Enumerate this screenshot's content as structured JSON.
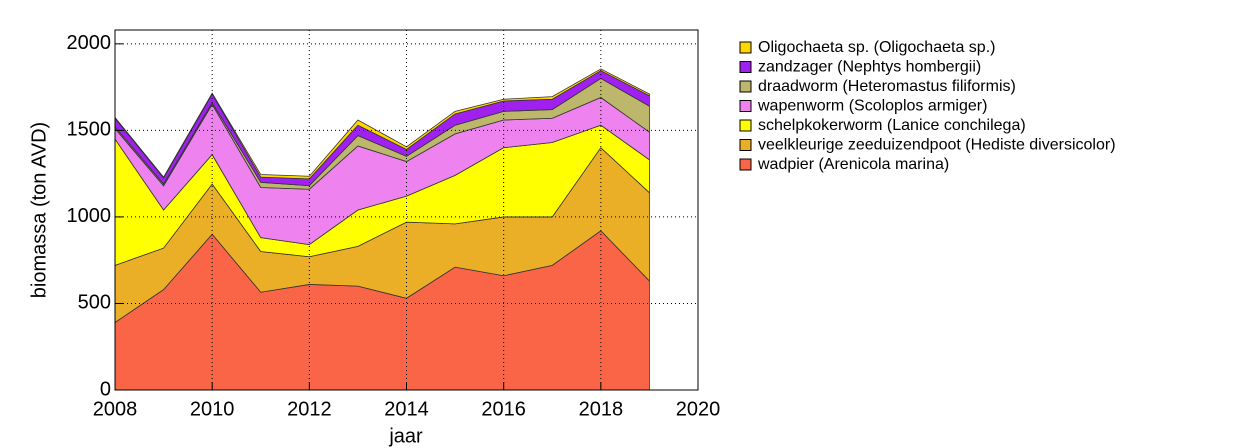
{
  "chart_data": {
    "type": "stacked_area",
    "x_label": "jaar",
    "y_label": "biomassa (ton AVD)",
    "x": [
      2008,
      2009,
      2010,
      2011,
      2012,
      2013,
      2014,
      2015,
      2016,
      2017,
      2018,
      2019
    ],
    "xlim": [
      2008,
      2020
    ],
    "xticks": [
      2008,
      2010,
      2012,
      2014,
      2016,
      2018,
      2020
    ],
    "ylim": [
      0,
      2080
    ],
    "yticks": [
      0,
      500,
      1000,
      1500,
      2000
    ],
    "grid": true,
    "series": [
      {
        "name": "wadpier (Arenicola marina)",
        "color": "#fa6547",
        "values": [
          390,
          580,
          900,
          565,
          610,
          600,
          530,
          710,
          660,
          720,
          920,
          630
        ]
      },
      {
        "name": "veelkleurige zeeduizendpoot (Hediste diversicolor)",
        "color": "#ebae27",
        "values": [
          330,
          240,
          290,
          235,
          160,
          230,
          440,
          250,
          340,
          280,
          480,
          510
        ]
      },
      {
        "name": "schelpkokerworm (Lanice conchilega)",
        "color": "#ffff00",
        "values": [
          730,
          220,
          170,
          80,
          70,
          210,
          150,
          280,
          400,
          430,
          130,
          190
        ]
      },
      {
        "name": "wapenworm (Scoloplos armiger)",
        "color": "#ee82ee",
        "values": [
          60,
          140,
          290,
          290,
          320,
          370,
          200,
          240,
          160,
          140,
          160,
          160
        ]
      },
      {
        "name": "draadworm (Heteromastus filiformis)",
        "color": "#bdb76b",
        "values": [
          10,
          10,
          10,
          30,
          20,
          60,
          30,
          50,
          50,
          50,
          110,
          150
        ]
      },
      {
        "name": "zandzager (Nephtys hombergii)",
        "color": "#a020f0",
        "values": [
          50,
          35,
          50,
          30,
          40,
          60,
          40,
          65,
          60,
          60,
          45,
          60
        ]
      },
      {
        "name": "Oligochaeta sp. (Oligochaeta sp.)",
        "color": "#ffd700",
        "values": [
          5,
          5,
          5,
          15,
          15,
          30,
          15,
          15,
          10,
          15,
          10,
          10
        ]
      }
    ]
  }
}
